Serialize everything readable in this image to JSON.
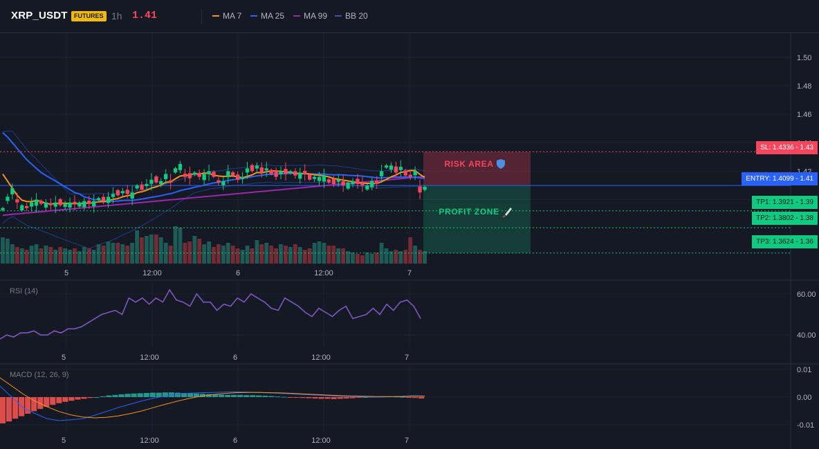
{
  "header": {
    "symbol": "XRP_USDT",
    "badge": "FUTURES",
    "timeframe": "1h",
    "price": "1.41",
    "legend": [
      {
        "label": "MA 7",
        "color": "#f7931a"
      },
      {
        "label": "MA 25",
        "color": "#2962ff"
      },
      {
        "label": "MA 99",
        "color": "#9c27b0"
      },
      {
        "label": "BB 20",
        "color": "#1e3a8a"
      }
    ]
  },
  "colors": {
    "up": "#26a69a",
    "up_bright": "#0ecb81",
    "down": "#f6465d",
    "bg": "#151924",
    "grid": "#1f2330"
  },
  "x_ticks": [
    "5",
    "12:00",
    "6",
    "12:00",
    "7"
  ],
  "overlays": {
    "risk_label": "RISK AREA",
    "risk_icon": "shield-icon",
    "profit_label": "PROFIT ZONE",
    "profit_icon": "rocket-icon",
    "sl_tag": "SL: 1.4336 - 1.43",
    "entry_tag": "ENTRY: 1.4099 - 1.41",
    "tp1_tag": "TP1: 1.3921 - 1.39",
    "tp2_tag": "TP2: 1.3802 - 1.38",
    "tp3_tag": "TP3: 1.3624 - 1.36"
  },
  "rsi_label": "RSI (14)",
  "macd_label": "MACD (12, 26, 9)",
  "chart_data": [
    {
      "type": "candlestick",
      "title": "XRP_USDT 1h",
      "y_ticks": [
        "1.50",
        "1.48",
        "1.46",
        "1.44",
        "1.42",
        "1.40"
      ],
      "ylim": [
        1.355,
        1.517
      ],
      "levels": {
        "sl": 1.4336,
        "entry": 1.4099,
        "tp1": 1.3921,
        "tp2": 1.3802,
        "tp3": 1.3624
      },
      "close": [
        1.394,
        1.402,
        1.408,
        1.398,
        1.396,
        1.394,
        1.398,
        1.4,
        1.397,
        1.398,
        1.396,
        1.398,
        1.396,
        1.397,
        1.398,
        1.397,
        1.398,
        1.399,
        1.397,
        1.399,
        1.401,
        1.399,
        1.402,
        1.404,
        1.403,
        1.406,
        1.404,
        1.405,
        1.41,
        1.407,
        1.411,
        1.414,
        1.412,
        1.413,
        1.418,
        1.412,
        1.422,
        1.425,
        1.416,
        1.415,
        1.419,
        1.416,
        1.418,
        1.42,
        1.416,
        1.412,
        1.413,
        1.42,
        1.417,
        1.414,
        1.416,
        1.422,
        1.42,
        1.424,
        1.419,
        1.422,
        1.418,
        1.416,
        1.42,
        1.418,
        1.42,
        1.417,
        1.419,
        1.418,
        1.414,
        1.416,
        1.416,
        1.417,
        1.412,
        1.411,
        1.414,
        1.41,
        1.412,
        1.413,
        1.411,
        1.41,
        1.41,
        1.413,
        1.411,
        1.42,
        1.424,
        1.424,
        1.419,
        1.423,
        1.417,
        1.416,
        1.42,
        1.405,
        1.409
      ],
      "bull": [
        1,
        1,
        1,
        0,
        1,
        0,
        1,
        1,
        0,
        1,
        0,
        1,
        0,
        1,
        1,
        0,
        1,
        1,
        0,
        1,
        1,
        0,
        1,
        1,
        0,
        1,
        0,
        1,
        1,
        0,
        1,
        1,
        0,
        1,
        1,
        0,
        1,
        1,
        0,
        0,
        1,
        0,
        1,
        1,
        0,
        0,
        1,
        1,
        0,
        0,
        1,
        1,
        0,
        1,
        0,
        1,
        0,
        0,
        1,
        0,
        1,
        0,
        1,
        0,
        0,
        1,
        1,
        1,
        0,
        0,
        1,
        0,
        1,
        1,
        0,
        0,
        1,
        1,
        0,
        1,
        1,
        1,
        0,
        1,
        0,
        0,
        1,
        0,
        1
      ],
      "volume": [
        38,
        36,
        28,
        24,
        22,
        20,
        26,
        28,
        22,
        26,
        24,
        20,
        24,
        22,
        20,
        22,
        18,
        24,
        22,
        20,
        28,
        26,
        32,
        30,
        30,
        28,
        26,
        30,
        48,
        38,
        40,
        42,
        42,
        38,
        30,
        26,
        54,
        52,
        30,
        32,
        40,
        36,
        28,
        32,
        24,
        28,
        26,
        30,
        26,
        22,
        20,
        26,
        22,
        34,
        28,
        30,
        26,
        22,
        28,
        26,
        24,
        28,
        24,
        20,
        22,
        30,
        32,
        30,
        26,
        26,
        22,
        22,
        18,
        16,
        14,
        12,
        16,
        14,
        16,
        30,
        22,
        18,
        20,
        18,
        20,
        38,
        26,
        20,
        18
      ]
    },
    {
      "type": "line",
      "title": "RSI (14)",
      "y_ticks": [
        "60.00",
        "40.00"
      ],
      "ylim": [
        34.0,
        66.0
      ],
      "values": [
        38,
        40,
        39,
        41,
        41,
        42,
        40,
        40,
        42,
        41,
        43,
        43,
        44,
        46,
        48,
        50,
        51,
        52,
        50,
        58,
        56,
        58,
        55,
        58,
        56,
        62,
        57,
        56,
        54,
        60,
        56,
        56,
        52,
        55,
        54,
        58,
        56,
        60,
        58,
        56,
        53,
        52,
        58,
        56,
        54,
        51,
        49,
        53,
        51,
        49,
        52,
        54,
        48,
        49,
        50,
        53,
        50,
        55,
        52,
        56,
        57,
        54,
        48
      ]
    },
    {
      "type": "bar+line",
      "title": "MACD (12, 26, 9)",
      "y_ticks": [
        "0.01",
        "0.00",
        "-0.01"
      ],
      "ylim": [
        -0.0125,
        0.0115
      ],
      "histogram": [
        -0.0095,
        -0.0088,
        -0.0078,
        -0.0069,
        -0.006,
        -0.0051,
        -0.0043,
        -0.0035,
        -0.0028,
        -0.0022,
        -0.0017,
        -0.0013,
        -0.0009,
        -0.0006,
        -0.0003,
        0.0,
        0.0003,
        0.0006,
        0.0008,
        0.001,
        0.0012,
        0.0013,
        0.0014,
        0.0015,
        0.0016,
        0.0016,
        0.0017,
        0.0017,
        0.0016,
        0.0015,
        0.0014,
        0.0013,
        0.0012,
        0.0011,
        0.001,
        0.0009,
        0.0008,
        0.0008,
        0.0008,
        0.0007,
        0.0007,
        0.0006,
        0.0005,
        0.0004,
        0.0002,
        0.0001,
        -0.0001,
        -0.0002,
        -0.0003,
        -0.0004,
        -0.0005,
        -0.0006,
        -0.0006,
        -0.0007,
        -0.0006,
        -0.0005,
        -0.0004,
        -0.0002,
        0.0,
        0.0001,
        0.0002,
        0.0003,
        0.0003,
        0.0002,
        0.0001,
        -0.0001,
        -0.0003,
        -0.0005
      ],
      "macd": [
        0.004,
        0.0,
        -0.004,
        -0.006,
        -0.0078,
        -0.0085,
        -0.0082,
        -0.0078,
        -0.0066,
        -0.0052,
        -0.0038,
        -0.0026,
        -0.0014,
        -0.0004,
        0.0004,
        0.001,
        0.0014,
        0.0016,
        0.0017,
        0.0018,
        0.0019,
        0.0018,
        0.0017,
        0.0015,
        0.0013,
        0.0011,
        0.0009,
        0.0007,
        0.0005,
        0.0003,
        0.0002,
        0.0001,
        0.0,
        0.0001,
        0.0003,
        0.0005,
        0.0004
      ],
      "signal": [
        0.007,
        0.004,
        0.001,
        -0.0015,
        -0.0035,
        -0.0052,
        -0.0064,
        -0.0072,
        -0.0075,
        -0.0073,
        -0.0068,
        -0.006,
        -0.005,
        -0.0038,
        -0.0026,
        -0.0015,
        -0.0005,
        0.0003,
        0.0009,
        0.0013,
        0.0016,
        0.0017,
        0.0017,
        0.0016,
        0.0015,
        0.0013,
        0.0011,
        0.0009,
        0.0007,
        0.0005,
        0.0004,
        0.0003,
        0.0002,
        0.0002,
        0.0002,
        0.0003,
        0.0003
      ]
    }
  ]
}
